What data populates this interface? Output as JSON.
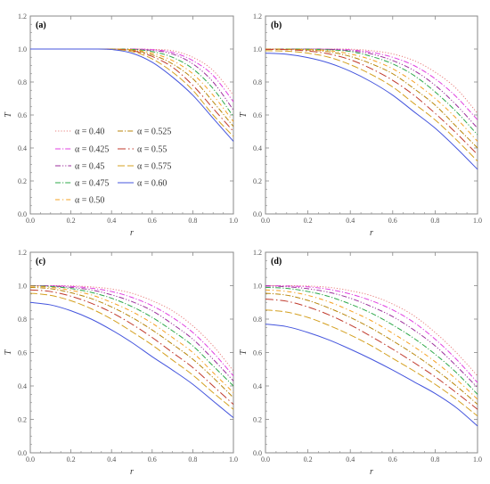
{
  "figure": {
    "panel_labels": [
      "(a)",
      "(b)",
      "(c)",
      "(d)"
    ]
  },
  "chart_data": [
    {
      "type": "line",
      "panel": "(a)",
      "xlabel": "r",
      "ylabel": "T",
      "xlim": [
        0,
        1
      ],
      "ylim": [
        0,
        1.2
      ],
      "xticks": [
        "0.0",
        "0.2",
        "0.4",
        "0.6",
        "0.8",
        "1.0"
      ],
      "yticks": [
        "0.0",
        "0.2",
        "0.4",
        "0.6",
        "0.8",
        "1.0",
        "1.2"
      ],
      "x": [
        0,
        0.1,
        0.2,
        0.3,
        0.4,
        0.5,
        0.6,
        0.7,
        0.8,
        0.9,
        1.0
      ],
      "grid": false,
      "legend": "inside-left",
      "series": [
        {
          "name": "α = 0.40",
          "style": "dot",
          "color": "#e8807f",
          "values": [
            1,
            1,
            1,
            1,
            1,
            1,
            0.998,
            0.99,
            0.95,
            0.87,
            0.72
          ]
        },
        {
          "name": "α = 0.425",
          "style": "dashdot",
          "color": "#e040e0",
          "values": [
            1,
            1,
            1,
            1,
            1,
            1,
            0.996,
            0.98,
            0.93,
            0.84,
            0.68
          ]
        },
        {
          "name": "α = 0.45",
          "style": "dashdotdot",
          "color": "#9b2e9b",
          "values": [
            1,
            1,
            1,
            1,
            1,
            0.999,
            0.992,
            0.97,
            0.91,
            0.8,
            0.63
          ]
        },
        {
          "name": "α = 0.475",
          "style": "dashdot",
          "color": "#2ea84a",
          "values": [
            1,
            1,
            1,
            1,
            1,
            0.998,
            0.985,
            0.95,
            0.88,
            0.76,
            0.59
          ]
        },
        {
          "name": "α = 0.50",
          "style": "dashdot2",
          "color": "#f5a020",
          "values": [
            1,
            1,
            1,
            1,
            1,
            0.996,
            0.975,
            0.93,
            0.85,
            0.72,
            0.56
          ]
        },
        {
          "name": "α = 0.525",
          "style": "dashdot",
          "color": "#b8860b",
          "values": [
            1,
            1,
            1,
            1,
            0.999,
            0.993,
            0.965,
            0.91,
            0.82,
            0.68,
            0.53
          ]
        },
        {
          "name": "α = 0.55",
          "style": "longdashdot",
          "color": "#c0392b",
          "values": [
            1,
            1,
            1,
            1,
            0.999,
            0.99,
            0.955,
            0.89,
            0.78,
            0.64,
            0.5
          ]
        },
        {
          "name": "α = 0.575",
          "style": "longdash",
          "color": "#d4a020",
          "values": [
            1,
            1,
            1,
            1,
            0.998,
            0.985,
            0.94,
            0.86,
            0.75,
            0.6,
            0.47
          ]
        },
        {
          "name": "α = 0.60",
          "style": "solid",
          "color": "#4455dd",
          "values": [
            1,
            1,
            1,
            1,
            0.997,
            0.975,
            0.92,
            0.83,
            0.72,
            0.58,
            0.44
          ]
        }
      ]
    },
    {
      "type": "line",
      "panel": "(b)",
      "xlabel": "r",
      "ylabel": "T",
      "xlim": [
        0,
        1
      ],
      "ylim": [
        0,
        1.2
      ],
      "xticks": [
        "0.0",
        "0.2",
        "0.4",
        "0.6",
        "0.8",
        "1.0"
      ],
      "yticks": [
        "0.0",
        "0.2",
        "0.4",
        "0.6",
        "0.8",
        "1.0",
        "1.2"
      ],
      "x": [
        0,
        0.1,
        0.2,
        0.3,
        0.4,
        0.5,
        0.6,
        0.7,
        0.8,
        0.9,
        1.0
      ],
      "grid": false,
      "series": [
        {
          "name": "α = 0.40",
          "style": "dot",
          "color": "#e8807f",
          "values": [
            1,
            1,
            1,
            1,
            0.999,
            0.99,
            0.97,
            0.93,
            0.86,
            0.76,
            0.61
          ]
        },
        {
          "name": "α = 0.425",
          "style": "dashdot",
          "color": "#e040e0",
          "values": [
            1,
            1,
            1,
            0.999,
            0.995,
            0.98,
            0.95,
            0.9,
            0.82,
            0.71,
            0.57
          ]
        },
        {
          "name": "α = 0.45",
          "style": "dashdotdot",
          "color": "#9b2e9b",
          "values": [
            1,
            1,
            1,
            0.998,
            0.99,
            0.97,
            0.93,
            0.87,
            0.78,
            0.66,
            0.52
          ]
        },
        {
          "name": "α = 0.475",
          "style": "dashdot",
          "color": "#2ea84a",
          "values": [
            1,
            1,
            0.999,
            0.995,
            0.985,
            0.955,
            0.91,
            0.84,
            0.74,
            0.62,
            0.48
          ]
        },
        {
          "name": "α = 0.50",
          "style": "dashdot2",
          "color": "#f5a020",
          "values": [
            1,
            0.999,
            0.997,
            0.99,
            0.97,
            0.935,
            0.88,
            0.8,
            0.7,
            0.58,
            0.44
          ]
        },
        {
          "name": "α = 0.525",
          "style": "dashdot",
          "color": "#b8860b",
          "values": [
            0.999,
            0.998,
            0.994,
            0.983,
            0.955,
            0.91,
            0.85,
            0.76,
            0.66,
            0.53,
            0.4
          ]
        },
        {
          "name": "α = 0.55",
          "style": "longdashdot",
          "color": "#c0392b",
          "values": [
            0.998,
            0.996,
            0.988,
            0.97,
            0.935,
            0.88,
            0.81,
            0.72,
            0.61,
            0.49,
            0.36
          ]
        },
        {
          "name": "α = 0.575",
          "style": "longdash",
          "color": "#d4a020",
          "values": [
            0.99,
            0.987,
            0.975,
            0.95,
            0.905,
            0.845,
            0.77,
            0.67,
            0.57,
            0.45,
            0.32
          ]
        },
        {
          "name": "α = 0.60",
          "style": "solid",
          "color": "#4455dd",
          "values": [
            0.975,
            0.968,
            0.948,
            0.915,
            0.865,
            0.8,
            0.72,
            0.62,
            0.52,
            0.4,
            0.27
          ]
        }
      ]
    },
    {
      "type": "line",
      "panel": "(c)",
      "xlabel": "r",
      "ylabel": "T",
      "xlim": [
        0,
        1
      ],
      "ylim": [
        0,
        1.2
      ],
      "xticks": [
        "0.0",
        "0.2",
        "0.4",
        "0.6",
        "0.8",
        "1.0"
      ],
      "yticks": [
        "0.0",
        "0.2",
        "0.4",
        "0.6",
        "0.8",
        "1.0",
        "1.2"
      ],
      "x": [
        0,
        0.1,
        0.2,
        0.3,
        0.4,
        0.5,
        0.6,
        0.7,
        0.8,
        0.9,
        1.0
      ],
      "grid": false,
      "series": [
        {
          "name": "α = 0.40",
          "style": "dot",
          "color": "#e8807f",
          "values": [
            1,
            1,
            0.999,
            0.993,
            0.98,
            0.955,
            0.91,
            0.85,
            0.76,
            0.64,
            0.49
          ]
        },
        {
          "name": "α = 0.425",
          "style": "dashdot",
          "color": "#e040e0",
          "values": [
            1,
            0.999,
            0.996,
            0.985,
            0.965,
            0.93,
            0.88,
            0.81,
            0.72,
            0.6,
            0.46
          ]
        },
        {
          "name": "α = 0.45",
          "style": "dashdotdot",
          "color": "#9b2e9b",
          "values": [
            1,
            0.998,
            0.99,
            0.975,
            0.945,
            0.905,
            0.85,
            0.77,
            0.68,
            0.56,
            0.43
          ]
        },
        {
          "name": "α = 0.475",
          "style": "dashdot",
          "color": "#2ea84a",
          "values": [
            0.999,
            0.995,
            0.983,
            0.96,
            0.925,
            0.875,
            0.81,
            0.73,
            0.64,
            0.52,
            0.4
          ]
        },
        {
          "name": "α = 0.50",
          "style": "dashdot2",
          "color": "#f5a020",
          "values": [
            0.997,
            0.99,
            0.972,
            0.945,
            0.9,
            0.845,
            0.775,
            0.69,
            0.6,
            0.48,
            0.36
          ]
        },
        {
          "name": "α = 0.525",
          "style": "dashdot",
          "color": "#b8860b",
          "values": [
            0.99,
            0.982,
            0.958,
            0.923,
            0.873,
            0.81,
            0.735,
            0.65,
            0.56,
            0.45,
            0.33
          ]
        },
        {
          "name": "α = 0.55",
          "style": "longdashdot",
          "color": "#c0392b",
          "values": [
            0.975,
            0.965,
            0.937,
            0.895,
            0.84,
            0.77,
            0.69,
            0.6,
            0.51,
            0.4,
            0.29
          ]
        },
        {
          "name": "α = 0.575",
          "style": "longdash",
          "color": "#d4a020",
          "values": [
            0.955,
            0.942,
            0.91,
            0.862,
            0.8,
            0.725,
            0.645,
            0.555,
            0.465,
            0.36,
            0.26
          ]
        },
        {
          "name": "α = 0.60",
          "style": "solid",
          "color": "#4455dd",
          "values": [
            0.9,
            0.885,
            0.85,
            0.8,
            0.735,
            0.66,
            0.575,
            0.495,
            0.41,
            0.31,
            0.21
          ]
        }
      ]
    },
    {
      "type": "line",
      "panel": "(d)",
      "xlabel": "r",
      "ylabel": "T",
      "xlim": [
        0,
        1
      ],
      "ylim": [
        0,
        1.2
      ],
      "xticks": [
        "0.0",
        "0.2",
        "0.4",
        "0.6",
        "0.8",
        "1.0"
      ],
      "yticks": [
        "0.0",
        "0.2",
        "0.4",
        "0.6",
        "0.8",
        "1.0",
        "1.2"
      ],
      "x": [
        0,
        0.1,
        0.2,
        0.3,
        0.4,
        0.5,
        0.6,
        0.7,
        0.8,
        0.9,
        1.0
      ],
      "grid": false,
      "series": [
        {
          "name": "α = 0.40",
          "style": "dot",
          "color": "#e8807f",
          "values": [
            1,
            1,
            0.998,
            0.99,
            0.97,
            0.94,
            0.89,
            0.82,
            0.72,
            0.6,
            0.46
          ]
        },
        {
          "name": "α = 0.425",
          "style": "dashdot",
          "color": "#e040e0",
          "values": [
            1,
            0.998,
            0.993,
            0.978,
            0.95,
            0.91,
            0.855,
            0.78,
            0.68,
            0.56,
            0.42
          ]
        },
        {
          "name": "α = 0.45",
          "style": "dashdotdot",
          "color": "#9b2e9b",
          "values": [
            0.998,
            0.994,
            0.982,
            0.96,
            0.925,
            0.875,
            0.815,
            0.735,
            0.64,
            0.52,
            0.39
          ]
        },
        {
          "name": "α = 0.475",
          "style": "dashdot",
          "color": "#2ea84a",
          "values": [
            0.99,
            0.984,
            0.965,
            0.935,
            0.89,
            0.835,
            0.765,
            0.685,
            0.59,
            0.48,
            0.35
          ]
        },
        {
          "name": "α = 0.50",
          "style": "dashdot2",
          "color": "#f5a020",
          "values": [
            0.975,
            0.966,
            0.942,
            0.903,
            0.85,
            0.79,
            0.715,
            0.635,
            0.545,
            0.44,
            0.32
          ]
        },
        {
          "name": "α = 0.525",
          "style": "dashdot",
          "color": "#b8860b",
          "values": [
            0.955,
            0.943,
            0.912,
            0.866,
            0.81,
            0.745,
            0.67,
            0.59,
            0.5,
            0.4,
            0.29
          ]
        },
        {
          "name": "α = 0.55",
          "style": "longdashdot",
          "color": "#c0392b",
          "values": [
            0.92,
            0.907,
            0.873,
            0.825,
            0.765,
            0.695,
            0.62,
            0.54,
            0.455,
            0.36,
            0.26
          ]
        },
        {
          "name": "α = 0.575",
          "style": "longdash",
          "color": "#d4a020",
          "values": [
            0.855,
            0.842,
            0.81,
            0.762,
            0.705,
            0.64,
            0.565,
            0.49,
            0.41,
            0.32,
            0.22
          ]
        },
        {
          "name": "α = 0.60",
          "style": "solid",
          "color": "#4455dd",
          "values": [
            0.77,
            0.755,
            0.72,
            0.675,
            0.62,
            0.56,
            0.495,
            0.425,
            0.355,
            0.27,
            0.16
          ]
        }
      ]
    }
  ]
}
